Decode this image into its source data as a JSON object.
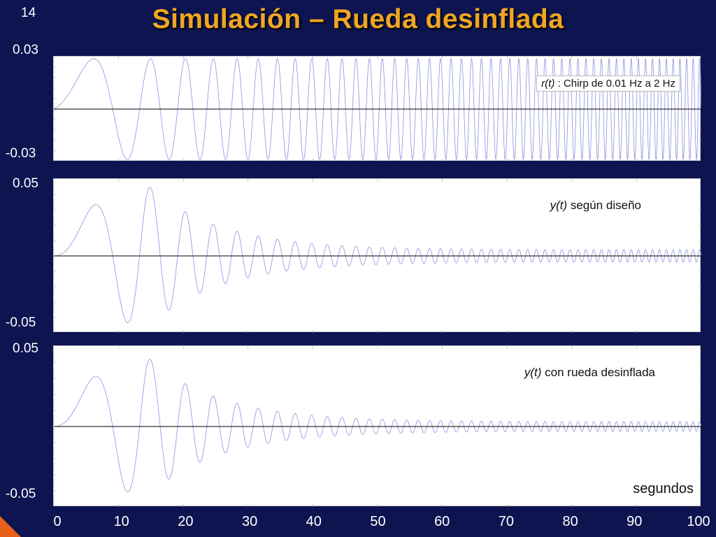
{
  "slide": {
    "number": "14",
    "title": "Simulación – Rueda desinflada"
  },
  "chart_data": [
    {
      "type": "line",
      "legend": "r(t)",
      "legend_rest": " : Chirp de 0.01 Hz a 2 Hz",
      "legend_placement": "top-right",
      "ytick_top": "0.03",
      "ytick_bottom": "-0.03",
      "ylim": [
        -0.03,
        0.03
      ],
      "xlim": [
        0,
        100
      ],
      "signal": {
        "kind": "chirp",
        "f0_hz": 0.01,
        "f1_hz": 2,
        "amplitude": 0.03,
        "decay": "none"
      },
      "color": "#8a8fe0"
    },
    {
      "type": "line",
      "legend": "y(t)",
      "legend_rest": " según diseño",
      "legend_placement": "top-right",
      "ytick_top": "0.05",
      "ytick_bottom": "-0.05",
      "ylim": [
        -0.05,
        0.05
      ],
      "xlim": [
        0,
        100
      ],
      "signal": {
        "kind": "chirp-response",
        "peak_amplitude": 0.048,
        "final_amplitude": 0.004
      },
      "color": "#8a8fe0"
    },
    {
      "type": "line",
      "legend": "y(t)",
      "legend_rest": " con rueda desinflada",
      "legend_placement": "top-right",
      "ytick_top": "0.05",
      "ytick_bottom": "-0.05",
      "ylim": [
        -0.05,
        0.05
      ],
      "xlim": [
        0,
        100
      ],
      "signal": {
        "kind": "chirp-response",
        "peak_amplitude": 0.045,
        "final_amplitude": 0.003
      },
      "color": "#8a8fe0"
    }
  ],
  "x_axis": {
    "ticks": [
      "0",
      "10",
      "20",
      "30",
      "40",
      "50",
      "60",
      "70",
      "80",
      "90",
      "100"
    ],
    "unit_label": "segundos"
  }
}
